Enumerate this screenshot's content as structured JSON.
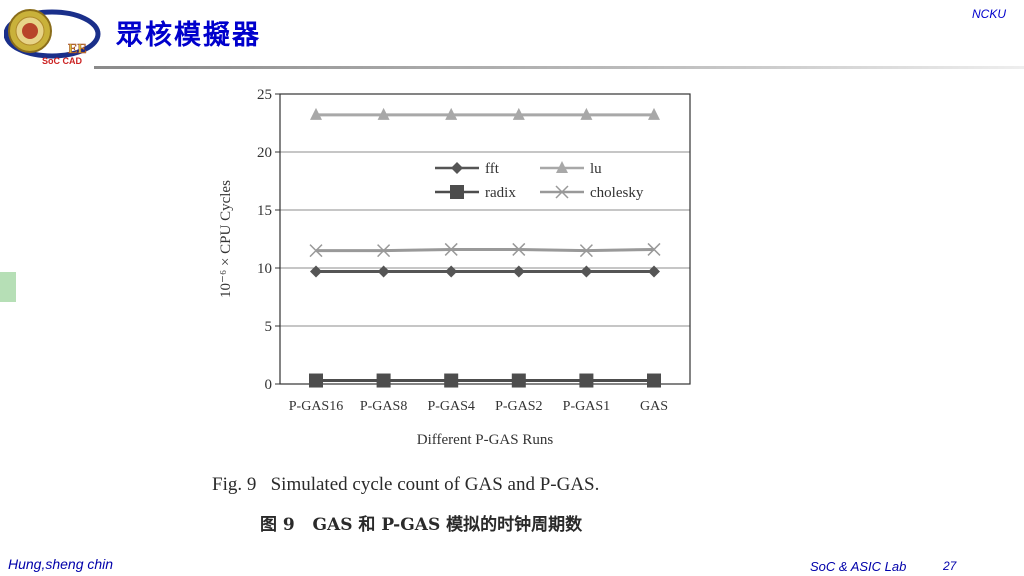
{
  "slide": {
    "title": "眾核模擬器",
    "org": "NCKU",
    "logo_text": "EE",
    "logo_subtext": "SoC CAD",
    "author": "Hung,sheng chin",
    "lab": "SoC & ASIC Lab",
    "page": "27"
  },
  "figure": {
    "caption_en": "Fig. 9   Simulated cycle count of GAS and P-GAS.",
    "caption_zh": "图 9   GAS 和 P-GAS 模拟的时钟周期数"
  },
  "chart_data": {
    "type": "line",
    "title": "",
    "xlabel": "Different P-GAS Runs",
    "ylabel": "10⁻⁶ × CPU Cycles",
    "categories": [
      "P-GAS16",
      "P-GAS8",
      "P-GAS4",
      "P-GAS2",
      "P-GAS1",
      "GAS"
    ],
    "ylim": [
      0,
      25
    ],
    "yticks": [
      0,
      5,
      10,
      15,
      20,
      25
    ],
    "grid": "horizontal",
    "legend_position": "top-right",
    "series": [
      {
        "name": "fft",
        "marker": "diamond",
        "color": "#555555",
        "values": [
          9.7,
          9.7,
          9.7,
          9.7,
          9.7,
          9.7
        ]
      },
      {
        "name": "lu",
        "marker": "triangle",
        "color": "#a8a8a8",
        "values": [
          23.2,
          23.2,
          23.2,
          23.2,
          23.2,
          23.2
        ]
      },
      {
        "name": "radix",
        "marker": "square",
        "color": "#4d4d4d",
        "values": [
          0.3,
          0.3,
          0.3,
          0.3,
          0.3,
          0.3
        ]
      },
      {
        "name": "cholesky",
        "marker": "x",
        "color": "#999999",
        "values": [
          11.5,
          11.5,
          11.6,
          11.6,
          11.5,
          11.6
        ]
      }
    ]
  }
}
